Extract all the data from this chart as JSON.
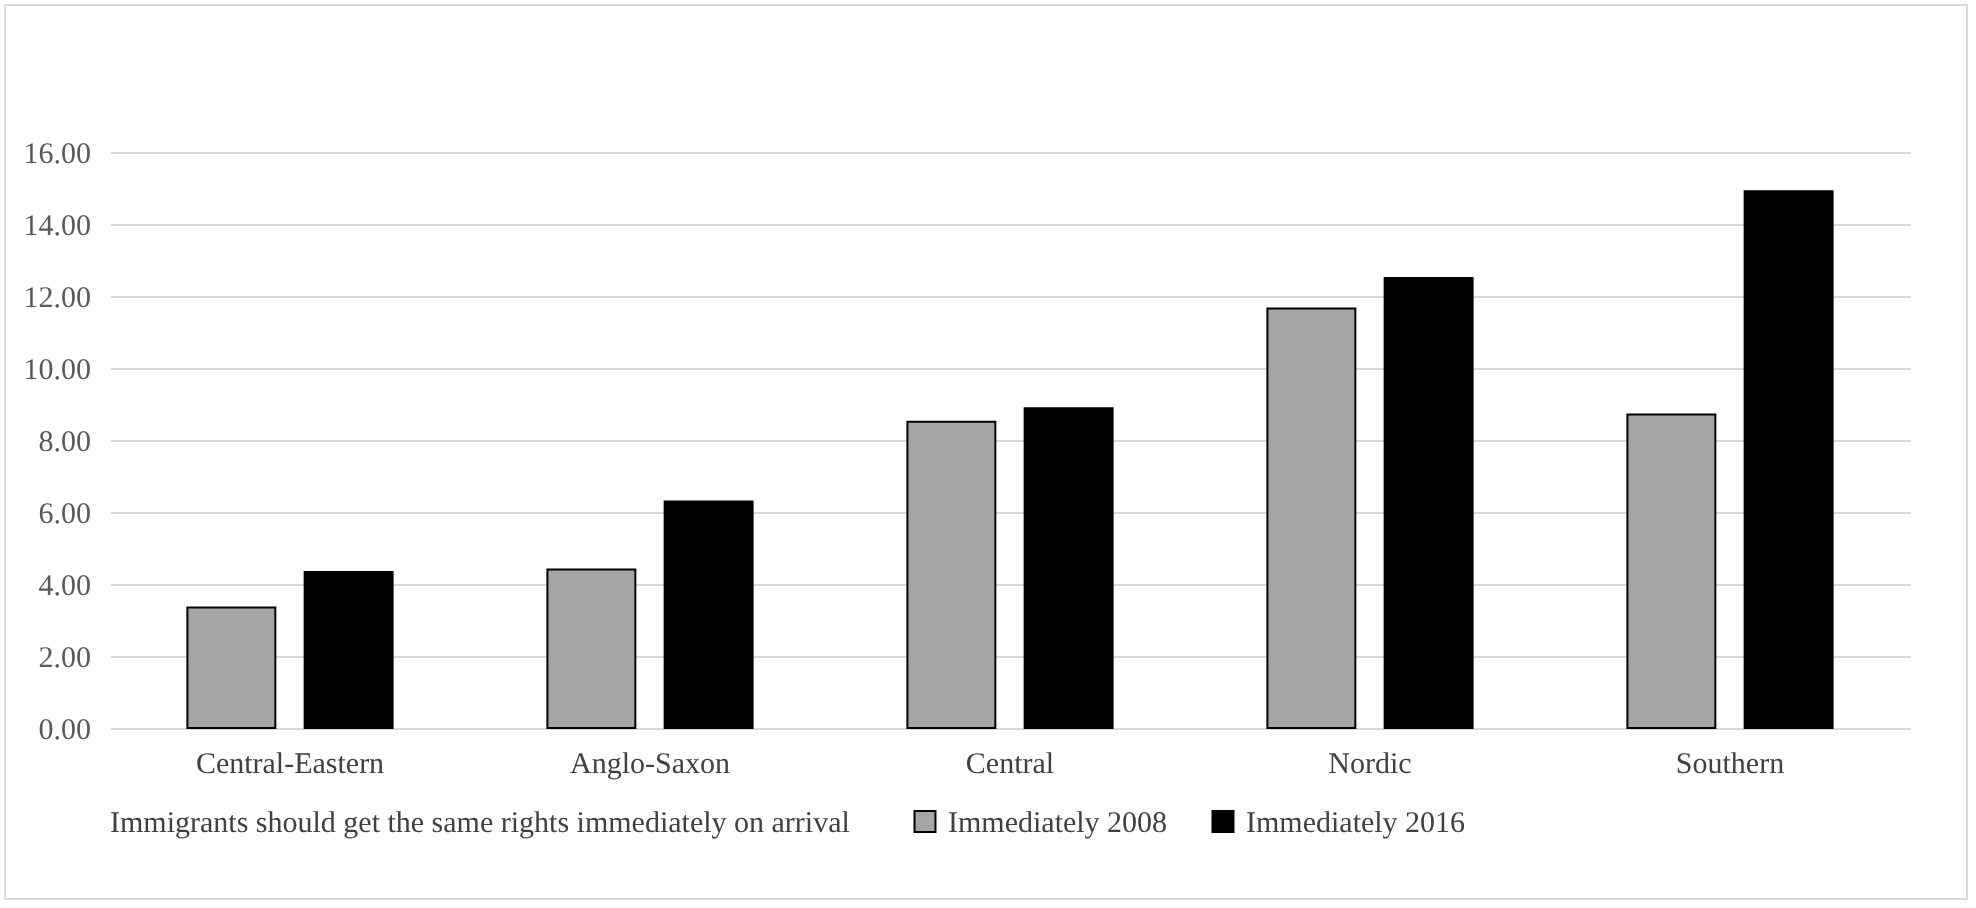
{
  "chart_data": {
    "type": "bar",
    "legend_title": "Immigrants should get the same rights immediately on arrival",
    "categories": [
      "Central-Eastern",
      "Anglo-Saxon",
      "Central",
      "Nordic",
      "Southern"
    ],
    "series": [
      {
        "name": "Immediately 2008",
        "color": "#a5a5a5",
        "values": [
          3.35,
          4.4,
          8.51,
          11.65,
          8.71
        ]
      },
      {
        "name": "Immediately 2016",
        "color": "#000000",
        "values": [
          4.33,
          6.29,
          8.88,
          12.5,
          14.91
        ]
      }
    ],
    "ylim": [
      0,
      16
    ],
    "yticks": [
      {
        "value": 0,
        "label": "0.00"
      },
      {
        "value": 2,
        "label": "2.00"
      },
      {
        "value": 4,
        "label": "4.00"
      },
      {
        "value": 6,
        "label": "6.00"
      },
      {
        "value": 8,
        "label": "8.00"
      },
      {
        "value": 10,
        "label": "10.00"
      },
      {
        "value": 12,
        "label": "12.00"
      },
      {
        "value": 14,
        "label": "14.00"
      },
      {
        "value": 16,
        "label": "16.00"
      }
    ],
    "grid": "y",
    "legend": "bottom"
  }
}
